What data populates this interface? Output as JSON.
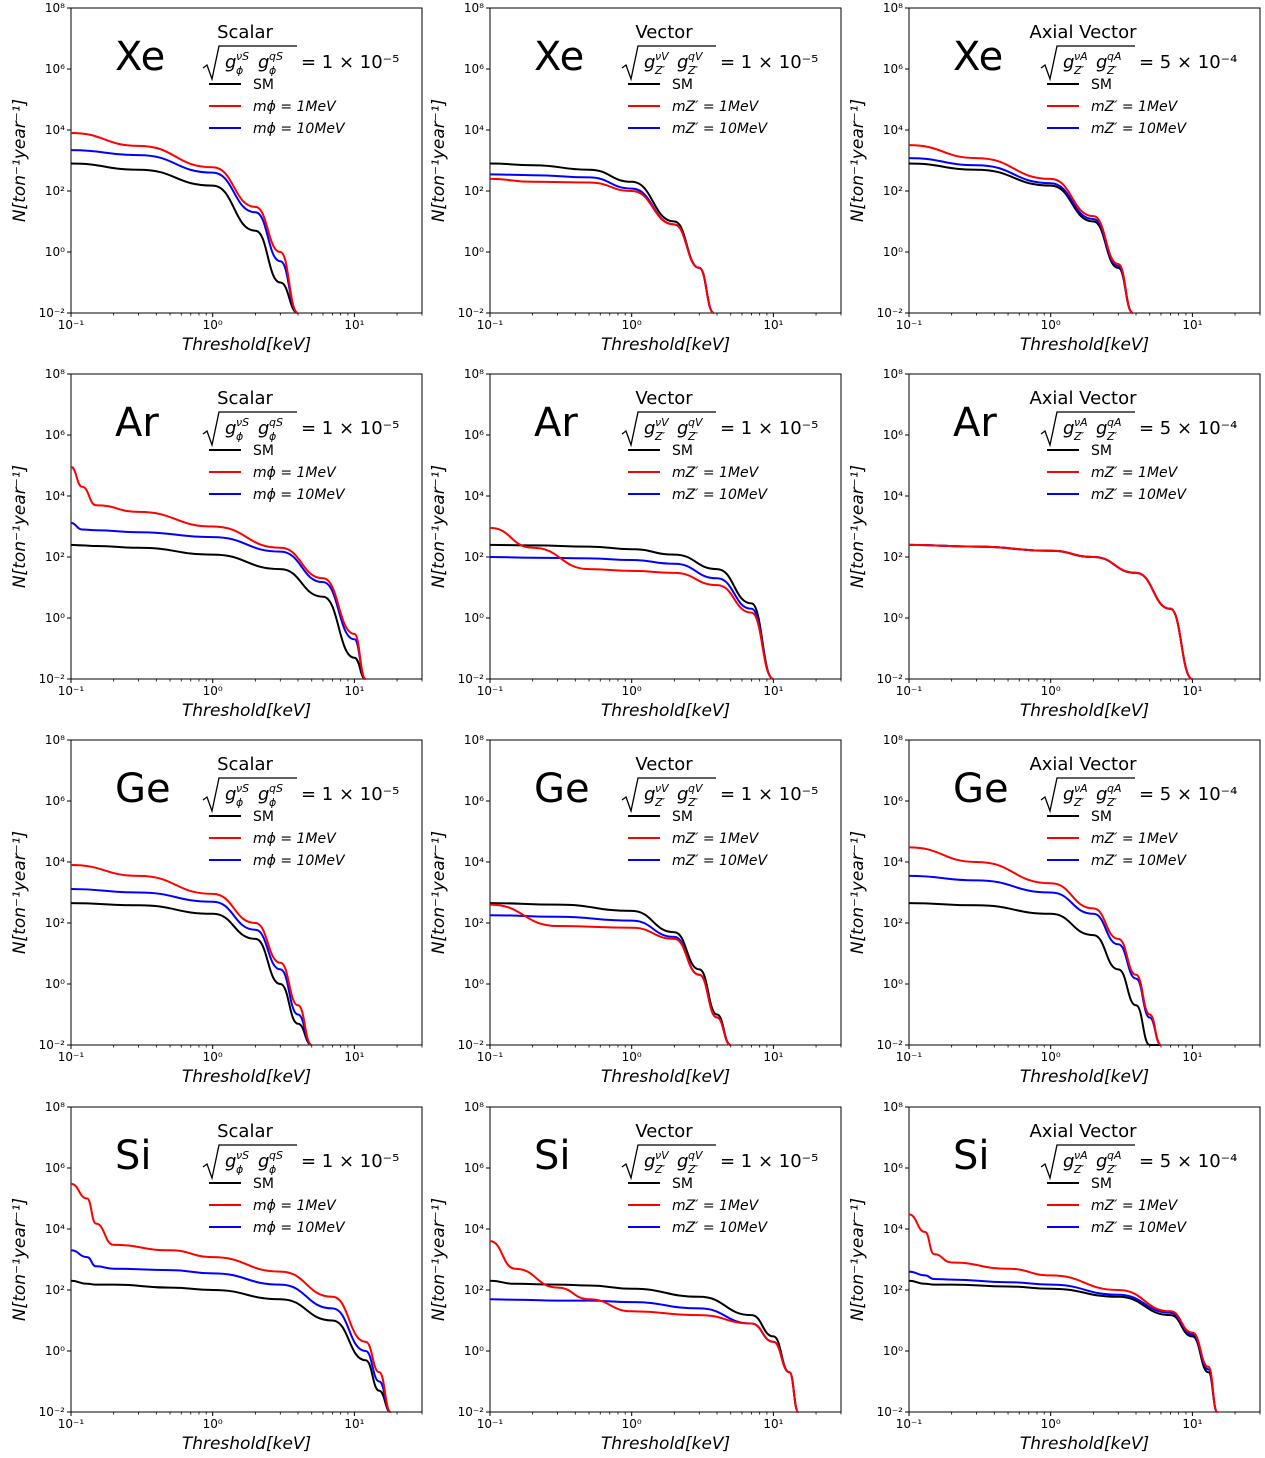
{
  "figure": {
    "xlabel": "Threshold[keV]",
    "ylabel": "N[ton⁻¹year⁻¹]",
    "x_ticks": [
      "10⁻¹",
      "10⁰",
      "10¹"
    ],
    "y_ticks": [
      "10⁻²",
      "10⁰",
      "10²",
      "10⁴",
      "10⁶",
      "10⁸"
    ],
    "colors": {
      "SM": "#000000",
      "light": "#ff0000",
      "heavy": "#0000ff"
    },
    "columns": [
      {
        "title": "Scalar",
        "coupling_num": "g",
        "coupling_sub": "ϕ",
        "sup1": "νS",
        "sup2": "qS",
        "coupling_value": "= 1 × 10⁻⁵",
        "legend": [
          "SM",
          "mϕ = 1MeV",
          "mϕ = 10MeV"
        ]
      },
      {
        "title": "Vector",
        "coupling_num": "g",
        "coupling_sub": "Z′",
        "sup1": "νV",
        "sup2": "qV",
        "coupling_value": "= 1 × 10⁻⁵",
        "legend": [
          "SM",
          "mZ′ = 1MeV",
          "mZ′ = 10MeV"
        ]
      },
      {
        "title": "Axial Vector",
        "coupling_num": "g",
        "coupling_sub": "Z′",
        "sup1": "νA",
        "sup2": "qA",
        "coupling_value": "= 5 × 10⁻⁴",
        "legend": [
          "SM",
          "mZ′ = 1MeV",
          "mZ′ = 10MeV"
        ]
      }
    ],
    "rows": [
      "Xe",
      "Ar",
      "Ge",
      "Si"
    ]
  },
  "chart_data": [
    {
      "type": "line",
      "element": "Xe",
      "model": "Scalar",
      "xlim": [
        0.1,
        30
      ],
      "ylim": [
        0.01,
        100000000
      ],
      "x_scale": "log",
      "y_scale": "log",
      "x": [
        0.1,
        0.3,
        1,
        2,
        3,
        4
      ],
      "series": [
        {
          "name": "SM",
          "color": "#000000",
          "values": [
            800,
            500,
            150,
            5,
            0.1,
            0.01
          ]
        },
        {
          "name": "mϕ = 1MeV",
          "color": "#ff0000",
          "values": [
            8000,
            3000,
            600,
            30,
            1,
            0.01
          ]
        },
        {
          "name": "mϕ = 10MeV",
          "color": "#0000ff",
          "values": [
            2200,
            1500,
            400,
            20,
            0.5,
            0.01
          ]
        }
      ]
    },
    {
      "type": "line",
      "element": "Xe",
      "model": "Vector",
      "xlim": [
        0.1,
        30
      ],
      "ylim": [
        0.01,
        100000000
      ],
      "x_scale": "log",
      "y_scale": "log",
      "x": [
        0.1,
        0.2,
        0.5,
        1,
        2,
        3,
        3.8
      ],
      "series": [
        {
          "name": "SM",
          "color": "#000000",
          "values": [
            800,
            700,
            500,
            200,
            10,
            0.3,
            0.01
          ]
        },
        {
          "name": "mZ′ = 1MeV",
          "color": "#ff0000",
          "values": [
            250,
            200,
            190,
            100,
            8,
            0.3,
            0.01
          ]
        },
        {
          "name": "mZ′ = 10MeV",
          "color": "#0000ff",
          "values": [
            350,
            330,
            280,
            120,
            8,
            0.3,
            0.01
          ]
        }
      ]
    },
    {
      "type": "line",
      "element": "Xe",
      "model": "Axial Vector",
      "xlim": [
        0.1,
        30
      ],
      "ylim": [
        0.01,
        100000000
      ],
      "x_scale": "log",
      "y_scale": "log",
      "x": [
        0.1,
        0.3,
        1,
        2,
        3,
        3.8
      ],
      "series": [
        {
          "name": "SM",
          "color": "#000000",
          "values": [
            800,
            500,
            150,
            10,
            0.3,
            0.01
          ]
        },
        {
          "name": "mZ′ = 1MeV",
          "color": "#ff0000",
          "values": [
            3200,
            1200,
            250,
            15,
            0.4,
            0.01
          ]
        },
        {
          "name": "mZ′ = 10MeV",
          "color": "#0000ff",
          "values": [
            1200,
            700,
            180,
            12,
            0.35,
            0.01
          ]
        }
      ]
    },
    {
      "type": "line",
      "element": "Ar",
      "model": "Scalar",
      "xlim": [
        0.1,
        30
      ],
      "ylim": [
        0.01,
        100000000
      ],
      "x_scale": "log",
      "y_scale": "log",
      "x": [
        0.1,
        0.12,
        0.15,
        0.3,
        1,
        3,
        6,
        10,
        12
      ],
      "series": [
        {
          "name": "SM",
          "color": "#000000",
          "values": [
            250,
            240,
            230,
            200,
            120,
            40,
            5,
            0.05,
            0.01
          ]
        },
        {
          "name": "mϕ = 1MeV",
          "color": "#ff0000",
          "values": [
            90000,
            20000,
            5000,
            3000,
            1000,
            200,
            20,
            0.3,
            0.01
          ]
        },
        {
          "name": "mϕ = 10MeV",
          "color": "#0000ff",
          "values": [
            1300,
            800,
            750,
            650,
            450,
            150,
            15,
            0.2,
            0.01
          ]
        }
      ]
    },
    {
      "type": "line",
      "element": "Ar",
      "model": "Vector",
      "xlim": [
        0.1,
        30
      ],
      "ylim": [
        0.01,
        100000000
      ],
      "x_scale": "log",
      "y_scale": "log",
      "x": [
        0.1,
        0.2,
        0.5,
        1,
        2,
        4,
        7,
        10
      ],
      "series": [
        {
          "name": "SM",
          "color": "#000000",
          "values": [
            250,
            240,
            220,
            180,
            120,
            40,
            3,
            0.01
          ]
        },
        {
          "name": "mZ′ = 1MeV",
          "color": "#ff0000",
          "values": [
            900,
            200,
            40,
            35,
            30,
            12,
            1.5,
            0.01
          ]
        },
        {
          "name": "mZ′ = 10MeV",
          "color": "#0000ff",
          "values": [
            100,
            95,
            90,
            80,
            60,
            20,
            2,
            0.01
          ]
        }
      ]
    },
    {
      "type": "line",
      "element": "Ar",
      "model": "Axial Vector",
      "xlim": [
        0.1,
        30
      ],
      "ylim": [
        0.01,
        100000000
      ],
      "x_scale": "log",
      "y_scale": "log",
      "x": [
        0.1,
        0.3,
        1,
        2,
        4,
        7,
        10
      ],
      "series": [
        {
          "name": "SM",
          "color": "#000000",
          "values": [
            250,
            220,
            160,
            100,
            30,
            2,
            0.01
          ]
        },
        {
          "name": "mZ′ = 1MeV",
          "color": "#ff0000",
          "values": [
            250,
            220,
            160,
            100,
            30,
            2,
            0.01
          ]
        },
        {
          "name": "mZ′ = 10MeV",
          "color": "#0000ff",
          "values": [
            250,
            220,
            160,
            100,
            30,
            2,
            0.01
          ]
        }
      ]
    },
    {
      "type": "line",
      "element": "Ge",
      "model": "Scalar",
      "xlim": [
        0.1,
        30
      ],
      "ylim": [
        0.01,
        100000000
      ],
      "x_scale": "log",
      "y_scale": "log",
      "x": [
        0.1,
        0.3,
        1,
        2,
        3,
        4,
        5
      ],
      "series": [
        {
          "name": "SM",
          "color": "#000000",
          "values": [
            450,
            380,
            200,
            30,
            1,
            0.05,
            0.01
          ]
        },
        {
          "name": "mϕ = 1MeV",
          "color": "#ff0000",
          "values": [
            8000,
            3500,
            900,
            100,
            5,
            0.2,
            0.01
          ]
        },
        {
          "name": "mϕ = 10MeV",
          "color": "#0000ff",
          "values": [
            1300,
            1000,
            500,
            60,
            3,
            0.1,
            0.01
          ]
        }
      ]
    },
    {
      "type": "line",
      "element": "Ge",
      "model": "Vector",
      "xlim": [
        0.1,
        30
      ],
      "ylim": [
        0.01,
        100000000
      ],
      "x_scale": "log",
      "y_scale": "log",
      "x": [
        0.1,
        0.3,
        1,
        2,
        3,
        4,
        5
      ],
      "series": [
        {
          "name": "SM",
          "color": "#000000",
          "values": [
            450,
            400,
            250,
            50,
            3,
            0.1,
            0.01
          ]
        },
        {
          "name": "mZ′ = 1MeV",
          "color": "#ff0000",
          "values": [
            400,
            80,
            70,
            30,
            2,
            0.08,
            0.01
          ]
        },
        {
          "name": "mZ′ = 10MeV",
          "color": "#0000ff",
          "values": [
            180,
            160,
            120,
            35,
            2,
            0.08,
            0.01
          ]
        }
      ]
    },
    {
      "type": "line",
      "element": "Ge",
      "model": "Axial Vector",
      "xlim": [
        0.1,
        30
      ],
      "ylim": [
        0.01,
        100000000
      ],
      "x_scale": "log",
      "y_scale": "log",
      "x": [
        0.1,
        0.3,
        1,
        2,
        3,
        4,
        5,
        6
      ],
      "series": [
        {
          "name": "SM",
          "color": "#000000",
          "values": [
            450,
            380,
            200,
            40,
            3,
            0.2,
            0.01,
            0.01
          ]
        },
        {
          "name": "mZ′ = 1MeV",
          "color": "#ff0000",
          "values": [
            30000,
            10000,
            2000,
            300,
            30,
            2,
            0.1,
            0.01
          ]
        },
        {
          "name": "mZ′ = 10MeV",
          "color": "#0000ff",
          "values": [
            3500,
            2500,
            1000,
            200,
            20,
            1.5,
            0.08,
            0.01
          ]
        }
      ]
    },
    {
      "type": "line",
      "element": "Si",
      "model": "Scalar",
      "xlim": [
        0.1,
        30
      ],
      "ylim": [
        0.01,
        100000000
      ],
      "x_scale": "log",
      "y_scale": "log",
      "x": [
        0.1,
        0.13,
        0.15,
        0.2,
        0.5,
        1,
        3,
        7,
        12,
        15,
        18
      ],
      "series": [
        {
          "name": "SM",
          "color": "#000000",
          "values": [
            200,
            160,
            150,
            150,
            120,
            100,
            50,
            10,
            0.5,
            0.05,
            0.01
          ]
        },
        {
          "name": "mϕ = 1MeV",
          "color": "#ff0000",
          "values": [
            300000,
            100000,
            15000,
            3000,
            2000,
            1200,
            400,
            60,
            2,
            0.2,
            0.01
          ]
        },
        {
          "name": "mϕ = 10MeV",
          "color": "#0000ff",
          "values": [
            2000,
            1200,
            600,
            500,
            450,
            350,
            150,
            25,
            1,
            0.1,
            0.01
          ]
        }
      ]
    },
    {
      "type": "line",
      "element": "Si",
      "model": "Vector",
      "xlim": [
        0.1,
        30
      ],
      "ylim": [
        0.01,
        100000000
      ],
      "x_scale": "log",
      "y_scale": "log",
      "x": [
        0.1,
        0.15,
        0.3,
        0.5,
        1,
        3,
        7,
        10,
        13,
        15
      ],
      "series": [
        {
          "name": "SM",
          "color": "#000000",
          "values": [
            200,
            160,
            150,
            140,
            110,
            60,
            15,
            3,
            0.2,
            0.01
          ]
        },
        {
          "name": "mZ′ = 1MeV",
          "color": "#ff0000",
          "values": [
            4000,
            500,
            120,
            50,
            20,
            15,
            8,
            2,
            0.2,
            0.01
          ]
        },
        {
          "name": "mZ′ = 10MeV",
          "color": "#0000ff",
          "values": [
            50,
            48,
            45,
            45,
            40,
            25,
            8,
            2,
            0.2,
            0.01
          ]
        }
      ]
    },
    {
      "type": "line",
      "element": "Si",
      "model": "Axial Vector",
      "xlim": [
        0.1,
        30
      ],
      "ylim": [
        0.01,
        100000000
      ],
      "x_scale": "log",
      "y_scale": "log",
      "x": [
        0.1,
        0.13,
        0.15,
        0.2,
        0.5,
        1,
        3,
        7,
        10,
        13,
        15
      ],
      "series": [
        {
          "name": "SM",
          "color": "#000000",
          "values": [
            200,
            160,
            150,
            150,
            130,
            110,
            60,
            15,
            3,
            0.2,
            0.01
          ]
        },
        {
          "name": "mZ′ = 1MeV",
          "color": "#ff0000",
          "values": [
            30000,
            8000,
            1500,
            800,
            500,
            300,
            100,
            20,
            4,
            0.3,
            0.01
          ]
        },
        {
          "name": "mZ′ = 10MeV",
          "color": "#0000ff",
          "values": [
            400,
            300,
            230,
            220,
            180,
            150,
            70,
            18,
            3.5,
            0.25,
            0.01
          ]
        }
      ]
    }
  ]
}
